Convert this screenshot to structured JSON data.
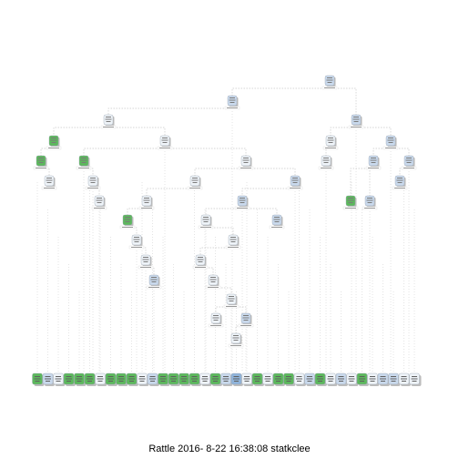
{
  "footer": {
    "caption": "Rattle 2016- 8-22 16:38:08 statkclee"
  },
  "colors": {
    "green": "#5cb85c",
    "green_light": "#9ad29a",
    "pale": "#eef3f8",
    "blue_light": "#c9d9ec",
    "blue": "#8fb3da",
    "shadow": "#bdbdbd",
    "edge": "#c8c8c8",
    "label_box": "#ffffff"
  },
  "tree": {
    "node_count": 77,
    "leaf_count": 37,
    "note": ""
  }
}
